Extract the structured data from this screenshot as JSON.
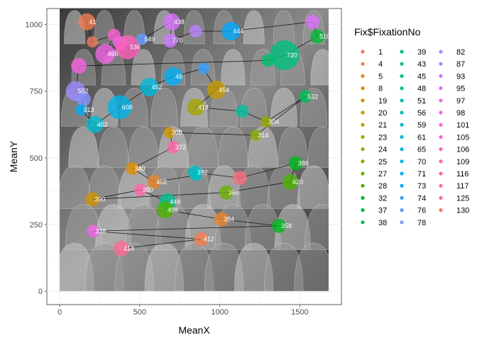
{
  "chart_data": {
    "type": "scatter",
    "xlabel": "MeanX",
    "ylabel": "MeanY",
    "xlim": [
      -80,
      1760
    ],
    "ylim": [
      -50,
      1060
    ],
    "x_ticks": [
      0,
      500,
      1000,
      1500
    ],
    "y_ticks": [
      0,
      250,
      500,
      750,
      1000
    ],
    "grid": true,
    "legend_position": "right",
    "legend_title": "Fix$FixationNo",
    "legend_entries": [
      {
        "label": "1",
        "color": "#F8766D"
      },
      {
        "label": "4",
        "color": "#F27D52"
      },
      {
        "label": "5",
        "color": "#E98429"
      },
      {
        "label": "8",
        "color": "#DE8C00"
      },
      {
        "label": "19",
        "color": "#D29200"
      },
      {
        "label": "20",
        "color": "#C49A00"
      },
      {
        "label": "21",
        "color": "#B79F00"
      },
      {
        "label": "23",
        "color": "#A7A400"
      },
      {
        "label": "24",
        "color": "#96A900"
      },
      {
        "label": "25",
        "color": "#83AD00"
      },
      {
        "label": "27",
        "color": "#6BB100"
      },
      {
        "label": "28",
        "color": "#4BB400"
      },
      {
        "label": "32",
        "color": "#00B81F"
      },
      {
        "label": "37",
        "color": "#00BA38"
      },
      {
        "label": "38",
        "color": "#00BC59"
      },
      {
        "label": "39",
        "color": "#00BE6C"
      },
      {
        "label": "43",
        "color": "#00C07E"
      },
      {
        "label": "45",
        "color": "#00C08E"
      },
      {
        "label": "48",
        "color": "#00C19E"
      },
      {
        "label": "51",
        "color": "#00C0AC"
      },
      {
        "label": "56",
        "color": "#00BFBA"
      },
      {
        "label": "59",
        "color": "#00BDC6"
      },
      {
        "label": "61",
        "color": "#00BBD2"
      },
      {
        "label": "65",
        "color": "#00B8DE"
      },
      {
        "label": "70",
        "color": "#00B4EA"
      },
      {
        "label": "71",
        "color": "#00B0F6"
      },
      {
        "label": "73",
        "color": "#00A9FF"
      },
      {
        "label": "74",
        "color": "#35A2FF"
      },
      {
        "label": "76",
        "color": "#619CFF"
      },
      {
        "label": "78",
        "color": "#8494FF"
      },
      {
        "label": "82",
        "color": "#9E8CFF"
      },
      {
        "label": "87",
        "color": "#B983FF"
      },
      {
        "label": "93",
        "color": "#CB7AFF"
      },
      {
        "label": "95",
        "color": "#DB72FB"
      },
      {
        "label": "97",
        "color": "#E76BF3"
      },
      {
        "label": "98",
        "color": "#F166E8"
      },
      {
        "label": "101",
        "color": "#F863DF"
      },
      {
        "label": "105",
        "color": "#FD61D1"
      },
      {
        "label": "106",
        "color": "#FF62BC"
      },
      {
        "label": "109",
        "color": "#FF66A9"
      },
      {
        "label": "116",
        "color": "#FF6C92"
      },
      {
        "label": "117",
        "color": "#FF6A98"
      },
      {
        "label": "125",
        "color": "#FB6F85"
      },
      {
        "label": "130",
        "color": "#F8766D"
      }
    ],
    "points": [
      {
        "x": 170,
        "y": 1010,
        "label": "41",
        "color": "#F27D52",
        "size": 12
      },
      {
        "x": 205,
        "y": 935,
        "label": "",
        "color": "#EE7A5C",
        "size": 8
      },
      {
        "x": 340,
        "y": 960,
        "label": "",
        "color": "#FD61D1",
        "size": 9
      },
      {
        "x": 285,
        "y": 890,
        "label": "466",
        "color": "#F166E8",
        "size": 14
      },
      {
        "x": 380,
        "y": 930,
        "label": "",
        "color": "#E76BF3",
        "size": 10
      },
      {
        "x": 425,
        "y": 915,
        "label": "536",
        "color": "#FF62BC",
        "size": 17
      },
      {
        "x": 515,
        "y": 945,
        "label": "549",
        "color": "#619CFF",
        "size": 8
      },
      {
        "x": 700,
        "y": 1010,
        "label": "438",
        "color": "#DB72FB",
        "size": 12
      },
      {
        "x": 690,
        "y": 940,
        "label": "770",
        "color": "#CB7AFF",
        "size": 10
      },
      {
        "x": 850,
        "y": 975,
        "label": "",
        "color": "#B983FF",
        "size": 9
      },
      {
        "x": 1070,
        "y": 975,
        "label": "444",
        "color": "#00A9FF",
        "size": 13
      },
      {
        "x": 1580,
        "y": 1010,
        "label": "",
        "color": "#DB72FB",
        "size": 10
      },
      {
        "x": 1610,
        "y": 955,
        "label": "510",
        "color": "#00BA38",
        "size": 10
      },
      {
        "x": 1405,
        "y": 885,
        "label": "720",
        "color": "#00C07E",
        "size": 21
      },
      {
        "x": 1300,
        "y": 865,
        "label": "",
        "color": "#00BE6C",
        "size": 9
      },
      {
        "x": 120,
        "y": 845,
        "label": "",
        "color": "#F863DF",
        "size": 11
      },
      {
        "x": 100,
        "y": 750,
        "label": "552",
        "color": "#9E8CFF",
        "size": 14
      },
      {
        "x": 150,
        "y": 720,
        "label": "",
        "color": "#8494FF",
        "size": 10
      },
      {
        "x": 135,
        "y": 680,
        "label": "313",
        "color": "#00B0F6",
        "size": 8
      },
      {
        "x": 220,
        "y": 625,
        "label": "402",
        "color": "#00BBD2",
        "size": 12
      },
      {
        "x": 375,
        "y": 690,
        "label": "608",
        "color": "#00B4EA",
        "size": 17
      },
      {
        "x": 560,
        "y": 765,
        "label": "452",
        "color": "#00B8DE",
        "size": 13
      },
      {
        "x": 710,
        "y": 805,
        "label": "46",
        "color": "#00B0F6",
        "size": 13
      },
      {
        "x": 900,
        "y": 835,
        "label": "",
        "color": "#35A2FF",
        "size": 8
      },
      {
        "x": 980,
        "y": 755,
        "label": "454",
        "color": "#C49A00",
        "size": 13
      },
      {
        "x": 850,
        "y": 690,
        "label": "414",
        "color": "#A7A400",
        "size": 12
      },
      {
        "x": 1140,
        "y": 675,
        "label": "",
        "color": "#00C19E",
        "size": 9
      },
      {
        "x": 1290,
        "y": 635,
        "label": "304",
        "color": "#96A900",
        "size": 8
      },
      {
        "x": 1535,
        "y": 730,
        "label": "532",
        "color": "#00BC59",
        "size": 9
      },
      {
        "x": 1225,
        "y": 585,
        "label": "314",
        "color": "#83AD00",
        "size": 8
      },
      {
        "x": 685,
        "y": 595,
        "label": "308",
        "color": "#D29200",
        "size": 8
      },
      {
        "x": 710,
        "y": 540,
        "label": "372",
        "color": "#FF66A9",
        "size": 9
      },
      {
        "x": 455,
        "y": 460,
        "label": "340",
        "color": "#DE8C00",
        "size": 9
      },
      {
        "x": 590,
        "y": 410,
        "label": "402",
        "color": "#E98429",
        "size": 10
      },
      {
        "x": 855,
        "y": 435,
        "label": "",
        "color": "#00BFBA",
        "size": 8
      },
      {
        "x": 845,
        "y": 445,
        "label": "392",
        "color": "#00BDC6",
        "size": 10
      },
      {
        "x": 1125,
        "y": 425,
        "label": "",
        "color": "#FB6F85",
        "size": 10
      },
      {
        "x": 1475,
        "y": 480,
        "label": "386",
        "color": "#00B81F",
        "size": 10
      },
      {
        "x": 1440,
        "y": 410,
        "label": "420",
        "color": "#4BB400",
        "size": 11
      },
      {
        "x": 1040,
        "y": 370,
        "label": "380",
        "color": "#6BB100",
        "size": 10
      },
      {
        "x": 205,
        "y": 345,
        "label": "390",
        "color": "#D29200",
        "size": 10
      },
      {
        "x": 505,
        "y": 380,
        "label": "350",
        "color": "#FF66A9",
        "size": 9
      },
      {
        "x": 675,
        "y": 335,
        "label": "448",
        "color": "#00C08E",
        "size": 12
      },
      {
        "x": 660,
        "y": 305,
        "label": "498",
        "color": "#4BB400",
        "size": 12
      },
      {
        "x": 1010,
        "y": 270,
        "label": "384",
        "color": "#E98429",
        "size": 10
      },
      {
        "x": 1370,
        "y": 245,
        "label": "358",
        "color": "#00B81F",
        "size": 10
      },
      {
        "x": 210,
        "y": 225,
        "label": "338",
        "color": "#F166E8",
        "size": 9
      },
      {
        "x": 885,
        "y": 195,
        "label": "412",
        "color": "#F27D52",
        "size": 10
      },
      {
        "x": 385,
        "y": 160,
        "label": "414",
        "color": "#FF6C92",
        "size": 11
      }
    ],
    "path_order": [
      0,
      1,
      2,
      3,
      4,
      5,
      6,
      7,
      8,
      9,
      10,
      11,
      12,
      13,
      14,
      15,
      16,
      17,
      18,
      19,
      20,
      21,
      22,
      23,
      24,
      25,
      26,
      27,
      28,
      29,
      30,
      31,
      32,
      33,
      34,
      35,
      36,
      37,
      38,
      39,
      40,
      41,
      42,
      43,
      44,
      45,
      46,
      47,
      48
    ]
  }
}
